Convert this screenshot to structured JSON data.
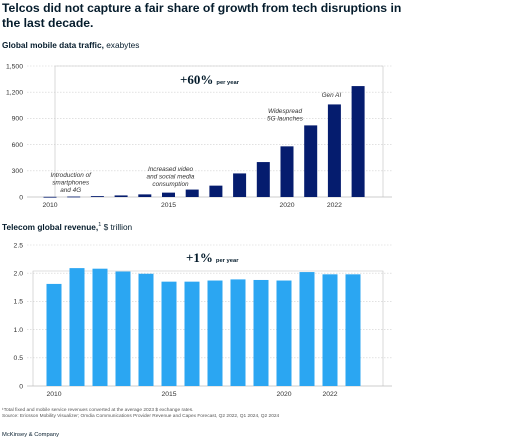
{
  "title": "Telcos did not capture a fair share of growth from tech disruptions in the last decade.",
  "chart1_subtitle": {
    "bold": "Global mobile data traffic,",
    "rest": " exabytes"
  },
  "chart2_subtitle": {
    "bold": "Telecom global revenue,",
    "sup": "1",
    "rest": " $ trillion"
  },
  "footnote": "¹Total fixed and mobile service revenues converted at the average 2023 $ exchange rates.",
  "source": "Source: Ericsson Mobility Visualizer; Omdia Communications Provider Revenue and Capex Forecast, Q2 2022, Q1 2024, Q2 2024",
  "brand": "McKinsey & Company",
  "colors": {
    "traffic_bar": "#051c6e",
    "revenue_bar": "#2ba6f2",
    "text": "#051c2c"
  },
  "chart_data": [
    {
      "type": "bar",
      "x": [
        2010,
        2011,
        2012,
        2013,
        2014,
        2015,
        2016,
        2017,
        2018,
        2019,
        2020,
        2021,
        2022,
        2023
      ],
      "values": [
        2,
        5,
        10,
        18,
        30,
        50,
        85,
        130,
        270,
        400,
        580,
        820,
        1060,
        1270
      ],
      "xticks": [
        "2010",
        "2015",
        "2020",
        "2022"
      ],
      "yticks": [
        "0",
        "300",
        "600",
        "900",
        "1,200",
        "1,500"
      ],
      "ylim": [
        0,
        1500
      ],
      "growth": {
        "value": "+60%",
        "label": "per year"
      },
      "annotations": [
        {
          "x": 2011,
          "lines": [
            "Introduction of",
            "smartphones",
            "and 4G"
          ]
        },
        {
          "x": 2015,
          "lines": [
            "Increased video",
            "and social media",
            "consumption"
          ]
        },
        {
          "x": 2020,
          "lines": [
            "Widespread",
            "5G launches"
          ]
        },
        {
          "x": 2022,
          "lines": [
            "Gen AI"
          ]
        }
      ]
    },
    {
      "type": "bar",
      "x": [
        2010,
        2011,
        2012,
        2013,
        2014,
        2015,
        2016,
        2017,
        2018,
        2019,
        2020,
        2021,
        2022,
        2023
      ],
      "values": [
        1.81,
        2.09,
        2.08,
        2.03,
        1.99,
        1.85,
        1.85,
        1.87,
        1.89,
        1.88,
        1.87,
        2.02,
        1.98,
        1.98
      ],
      "xticks": [
        "2010",
        "2015",
        "2020",
        "2022"
      ],
      "yticks": [
        "0",
        "0.5",
        "1.0",
        "1.5",
        "2.0",
        "2.5"
      ],
      "ylim": [
        0,
        2.5
      ],
      "growth": {
        "value": "+1%",
        "label": "per year"
      }
    }
  ]
}
